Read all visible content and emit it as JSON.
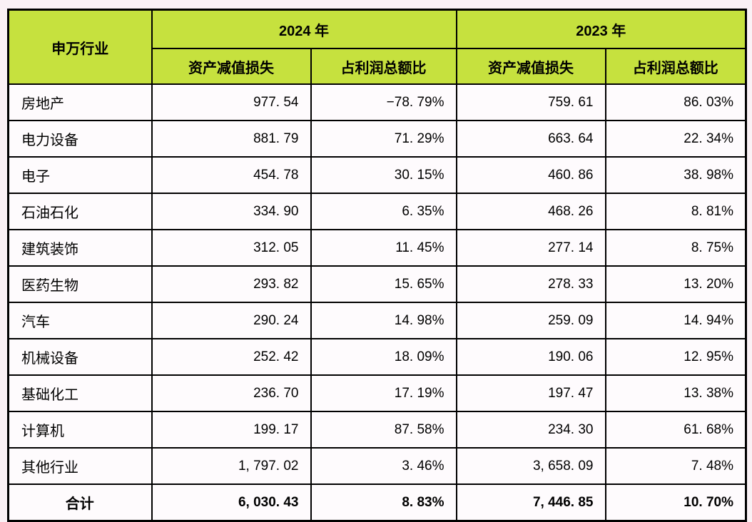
{
  "colors": {
    "header_bg": "#C6E13E",
    "border": "#000000",
    "cell_bg": "#FEFBFD",
    "page_bg": "#FAF1F5",
    "text": "#000000"
  },
  "table": {
    "header": {
      "industry_col": "申万行业",
      "year_2024": "2024 年",
      "year_2023": "2023 年",
      "sub_loss": "资产减值损失",
      "sub_ratio": "占利润总额比"
    },
    "rows": [
      {
        "industry": "房地产",
        "y2024_loss": "977. 54",
        "y2024_ratio": "−78. 79%",
        "y2023_loss": "759. 61",
        "y2023_ratio": "86. 03%"
      },
      {
        "industry": "电力设备",
        "y2024_loss": "881. 79",
        "y2024_ratio": "71. 29%",
        "y2023_loss": "663. 64",
        "y2023_ratio": "22. 34%"
      },
      {
        "industry": "电子",
        "y2024_loss": "454. 78",
        "y2024_ratio": "30. 15%",
        "y2023_loss": "460. 86",
        "y2023_ratio": "38. 98%"
      },
      {
        "industry": "石油石化",
        "y2024_loss": "334. 90",
        "y2024_ratio": "6. 35%",
        "y2023_loss": "468. 26",
        "y2023_ratio": "8. 81%"
      },
      {
        "industry": "建筑装饰",
        "y2024_loss": "312. 05",
        "y2024_ratio": "11. 45%",
        "y2023_loss": "277. 14",
        "y2023_ratio": "8. 75%"
      },
      {
        "industry": "医药生物",
        "y2024_loss": "293. 82",
        "y2024_ratio": "15. 65%",
        "y2023_loss": "278. 33",
        "y2023_ratio": "13. 20%"
      },
      {
        "industry": "汽车",
        "y2024_loss": "290. 24",
        "y2024_ratio": "14. 98%",
        "y2023_loss": "259. 09",
        "y2023_ratio": "14. 94%"
      },
      {
        "industry": "机械设备",
        "y2024_loss": "252. 42",
        "y2024_ratio": "18. 09%",
        "y2023_loss": "190. 06",
        "y2023_ratio": "12. 95%"
      },
      {
        "industry": "基础化工",
        "y2024_loss": "236. 70",
        "y2024_ratio": "17. 19%",
        "y2023_loss": "197. 47",
        "y2023_ratio": "13. 38%"
      },
      {
        "industry": "计算机",
        "y2024_loss": "199. 17",
        "y2024_ratio": "87. 58%",
        "y2023_loss": "234. 30",
        "y2023_ratio": "61. 68%"
      },
      {
        "industry": "其他行业",
        "y2024_loss": "1, 797. 02",
        "y2024_ratio": "3. 46%",
        "y2023_loss": "3, 658. 09",
        "y2023_ratio": "7. 48%"
      },
      {
        "industry": "合计",
        "y2024_loss": "6, 030. 43",
        "y2024_ratio": "8. 83%",
        "y2023_loss": "7, 446. 85",
        "y2023_ratio": "10. 70%",
        "is_total": true
      }
    ]
  },
  "chart_data": {
    "type": "table",
    "title": "",
    "columns": [
      "申万行业",
      "2024年 资产减值损失",
      "2024年 占利润总额比",
      "2023年 资产减值损失",
      "2023年 占利润总额比"
    ],
    "categories": [
      "房地产",
      "电力设备",
      "电子",
      "石油石化",
      "建筑装饰",
      "医药生物",
      "汽车",
      "机械设备",
      "基础化工",
      "计算机",
      "其他行业",
      "合计"
    ],
    "series": [
      {
        "name": "2024年 资产减值损失",
        "values": [
          977.54,
          881.79,
          454.78,
          334.9,
          312.05,
          293.82,
          290.24,
          252.42,
          236.7,
          199.17,
          1797.02,
          6030.43
        ]
      },
      {
        "name": "2024年 占利润总额比(%)",
        "values": [
          -78.79,
          71.29,
          30.15,
          6.35,
          11.45,
          15.65,
          14.98,
          18.09,
          17.19,
          87.58,
          3.46,
          8.83
        ]
      },
      {
        "name": "2023年 资产减值损失",
        "values": [
          759.61,
          663.64,
          460.86,
          468.26,
          277.14,
          278.33,
          259.09,
          190.06,
          197.47,
          234.3,
          3658.09,
          7446.85
        ]
      },
      {
        "name": "2023年 占利润总额比(%)",
        "values": [
          86.03,
          22.34,
          38.98,
          8.81,
          8.75,
          13.2,
          14.94,
          12.95,
          13.38,
          61.68,
          7.48,
          10.7
        ]
      }
    ]
  }
}
